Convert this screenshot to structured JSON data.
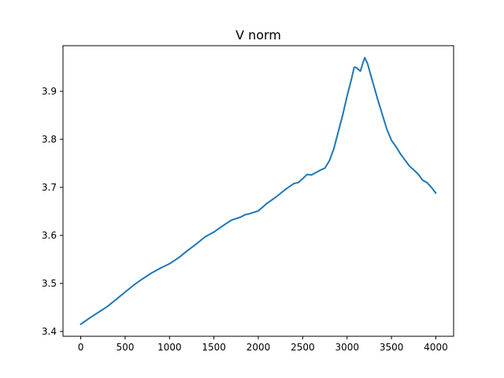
{
  "chart_data": {
    "type": "line",
    "title": "V norm",
    "xlabel": "",
    "ylabel": "",
    "xlim": [
      -200,
      4200
    ],
    "ylim": [
      3.39,
      3.995
    ],
    "xticks": [
      0,
      500,
      1000,
      1500,
      2000,
      2500,
      3000,
      3500,
      4000
    ],
    "xtick_labels": [
      "0",
      "500",
      "1000",
      "1500",
      "2000",
      "2500",
      "3000",
      "3500",
      "4000"
    ],
    "yticks": [
      3.4,
      3.5,
      3.6,
      3.7,
      3.8,
      3.9
    ],
    "ytick_labels": [
      "3.4",
      "3.5",
      "3.6",
      "3.7",
      "3.8",
      "3.9"
    ],
    "grid": false,
    "series": [
      {
        "color": "#1f77b4",
        "x": [
          0,
          100,
          200,
          300,
          400,
          500,
          600,
          700,
          800,
          900,
          1000,
          1100,
          1200,
          1300,
          1400,
          1500,
          1600,
          1700,
          1800,
          1850,
          1900,
          2000,
          2100,
          2200,
          2300,
          2400,
          2450,
          2500,
          2550,
          2600,
          2700,
          2750,
          2800,
          2850,
          2900,
          2950,
          3000,
          3050,
          3080,
          3100,
          3150,
          3180,
          3200,
          3230,
          3280,
          3350,
          3450,
          3500,
          3550,
          3600,
          3700,
          3800,
          3850,
          3900,
          3950,
          4000
        ],
        "y": [
          3.415,
          3.428,
          3.44,
          3.452,
          3.467,
          3.482,
          3.497,
          3.51,
          3.522,
          3.532,
          3.541,
          3.553,
          3.568,
          3.582,
          3.597,
          3.607,
          3.62,
          3.632,
          3.638,
          3.643,
          3.645,
          3.651,
          3.667,
          3.68,
          3.695,
          3.708,
          3.71,
          3.718,
          3.727,
          3.726,
          3.736,
          3.74,
          3.755,
          3.78,
          3.815,
          3.85,
          3.89,
          3.926,
          3.95,
          3.95,
          3.942,
          3.96,
          3.97,
          3.958,
          3.925,
          3.88,
          3.82,
          3.798,
          3.785,
          3.77,
          3.745,
          3.728,
          3.715,
          3.71,
          3.7,
          3.688
        ]
      }
    ]
  }
}
